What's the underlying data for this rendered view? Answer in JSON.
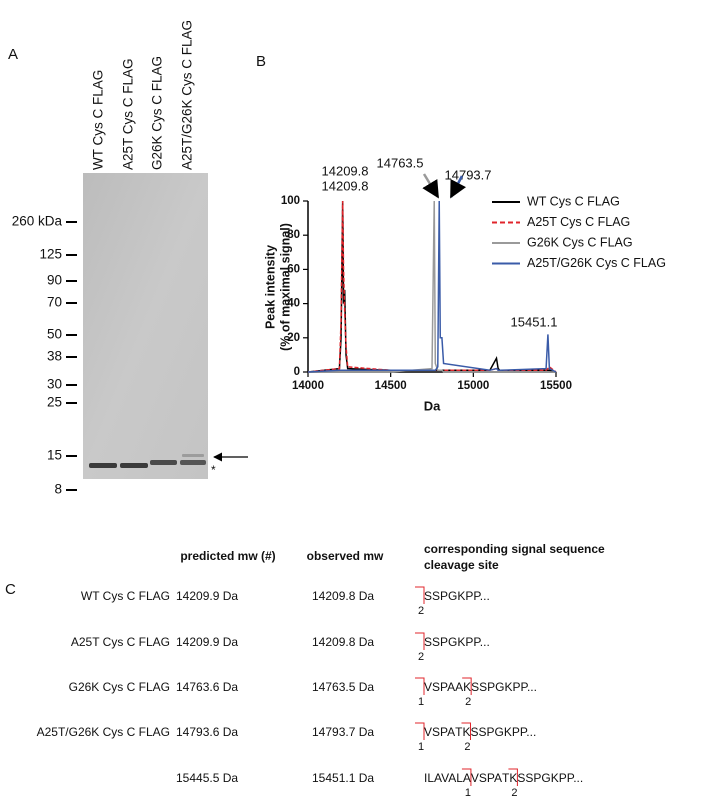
{
  "panel_labels": [
    "A",
    "B",
    "C"
  ],
  "gel": {
    "lanes": [
      "WT Cys C FLAG",
      "A25T Cys C FLAG",
      "G26K Cys C FLAG",
      "A25T/G26K Cys C FLAG"
    ],
    "markers": [
      "260 kDa",
      "125",
      "90",
      "70",
      "50",
      "38",
      "30",
      "25",
      "15",
      "8"
    ],
    "asterisk": "*"
  },
  "chart_data": {
    "type": "line",
    "xlabel": "Da",
    "ylabel": [
      "Peak intensity",
      "(% of maximal signal)"
    ],
    "x": [
      14000,
      14190,
      14200,
      14205,
      14209.8,
      14215,
      14222,
      14230,
      14240,
      14500,
      14750,
      14763.5,
      14770,
      14785,
      14793.7,
      14800,
      14810,
      14820,
      15100,
      15140,
      15150,
      15160,
      15440,
      15451.1,
      15460,
      15500
    ],
    "series": [
      {
        "name": "WT Cys C FLAG",
        "color": "#000000",
        "values": [
          0,
          2,
          20,
          60,
          100,
          40,
          48,
          10,
          2,
          1,
          1,
          1,
          1,
          1,
          1,
          1,
          1,
          1,
          1,
          8,
          2,
          1,
          1,
          1,
          1,
          0
        ]
      },
      {
        "name": "A25T Cys C FLAG",
        "color": "#e0242b",
        "dash": true,
        "values": [
          0,
          2,
          30,
          70,
          100,
          60,
          35,
          15,
          3,
          1,
          1,
          1,
          1,
          1,
          1,
          1,
          1,
          1,
          1,
          2,
          1,
          1,
          1,
          2,
          3,
          0
        ]
      },
      {
        "name": "G26K Cys C FLAG",
        "color": "#9a9a9a",
        "values": [
          0,
          0,
          0,
          0,
          0,
          0,
          0,
          0,
          0,
          0,
          2,
          100,
          5,
          1,
          1,
          1,
          1,
          0,
          0,
          0,
          0,
          0,
          0,
          0,
          0,
          0
        ]
      },
      {
        "name": "A25T/G26K Cys C FLAG",
        "color": "#3a5ba8",
        "values": [
          0,
          1,
          1,
          1,
          1,
          1,
          1,
          1,
          1,
          1,
          1,
          1,
          1,
          3,
          100,
          20,
          20,
          5,
          1,
          2,
          1,
          1,
          2,
          22,
          2,
          0
        ]
      }
    ],
    "annotations": [
      {
        "text": "14209.8",
        "color": "#000000"
      },
      {
        "text": "14209.8",
        "color": "#e0242b"
      },
      {
        "text": "14763.5",
        "color": "#9a9a9a"
      },
      {
        "text": "14793.7",
        "color": "#3a5ba8"
      },
      {
        "text": "15451.1",
        "color": "#3a5ba8"
      }
    ],
    "xlim": [
      14000,
      15500
    ],
    "ylim": [
      0,
      100
    ],
    "xticks": [
      14000,
      14500,
      15000,
      15500
    ],
    "yticks": [
      0,
      20,
      40,
      60,
      80,
      100
    ]
  },
  "table": {
    "headers": [
      "predicted mw (#)",
      "observed mw",
      [
        "corresponding signal sequence",
        "cleavage site"
      ]
    ],
    "rows": [
      {
        "name": "WT Cys C FLAG",
        "predicted": "14209.9 Da",
        "observed": "14209.8 Da",
        "sequence": [
          {
            "site": "2",
            "text": "SSPGKPP..."
          }
        ]
      },
      {
        "name": "A25T Cys C FLAG",
        "predicted": "14209.9 Da",
        "observed": "14209.8 Da",
        "sequence": [
          {
            "site": "2",
            "text": "SSPGKPP..."
          }
        ]
      },
      {
        "name": "G26K Cys C FLAG",
        "predicted": "14763.6 Da",
        "observed": "14763.5 Da",
        "sequence": [
          {
            "site": "1",
            "text": "VSPA"
          },
          {
            "text": "A",
            "color": "#2ca05a"
          },
          {
            "text": "K"
          },
          {
            "site": "2",
            "text": "SSPGKPP..."
          }
        ]
      },
      {
        "name": "A25T/G26K Cys C FLAG",
        "predicted": "14793.6 Da",
        "observed": "14793.7 Da",
        "sequence": [
          {
            "site": "1",
            "text": "VSPA"
          },
          {
            "text": "T",
            "color": "#2ca05a"
          },
          {
            "text": "K"
          },
          {
            "site": "2",
            "text": "SSPGKPP..."
          }
        ]
      },
      {
        "predicted": "15445.5 Da",
        "observed": "15451.1 Da",
        "sequence": [
          {
            "text": "ILAVALA"
          },
          {
            "site": "1",
            "text": "VSPA"
          },
          {
            "text": "T",
            "color": "#2ca05a"
          },
          {
            "text": "K"
          },
          {
            "site": "2",
            "text": "SSPGKPP..."
          }
        ]
      }
    ]
  }
}
